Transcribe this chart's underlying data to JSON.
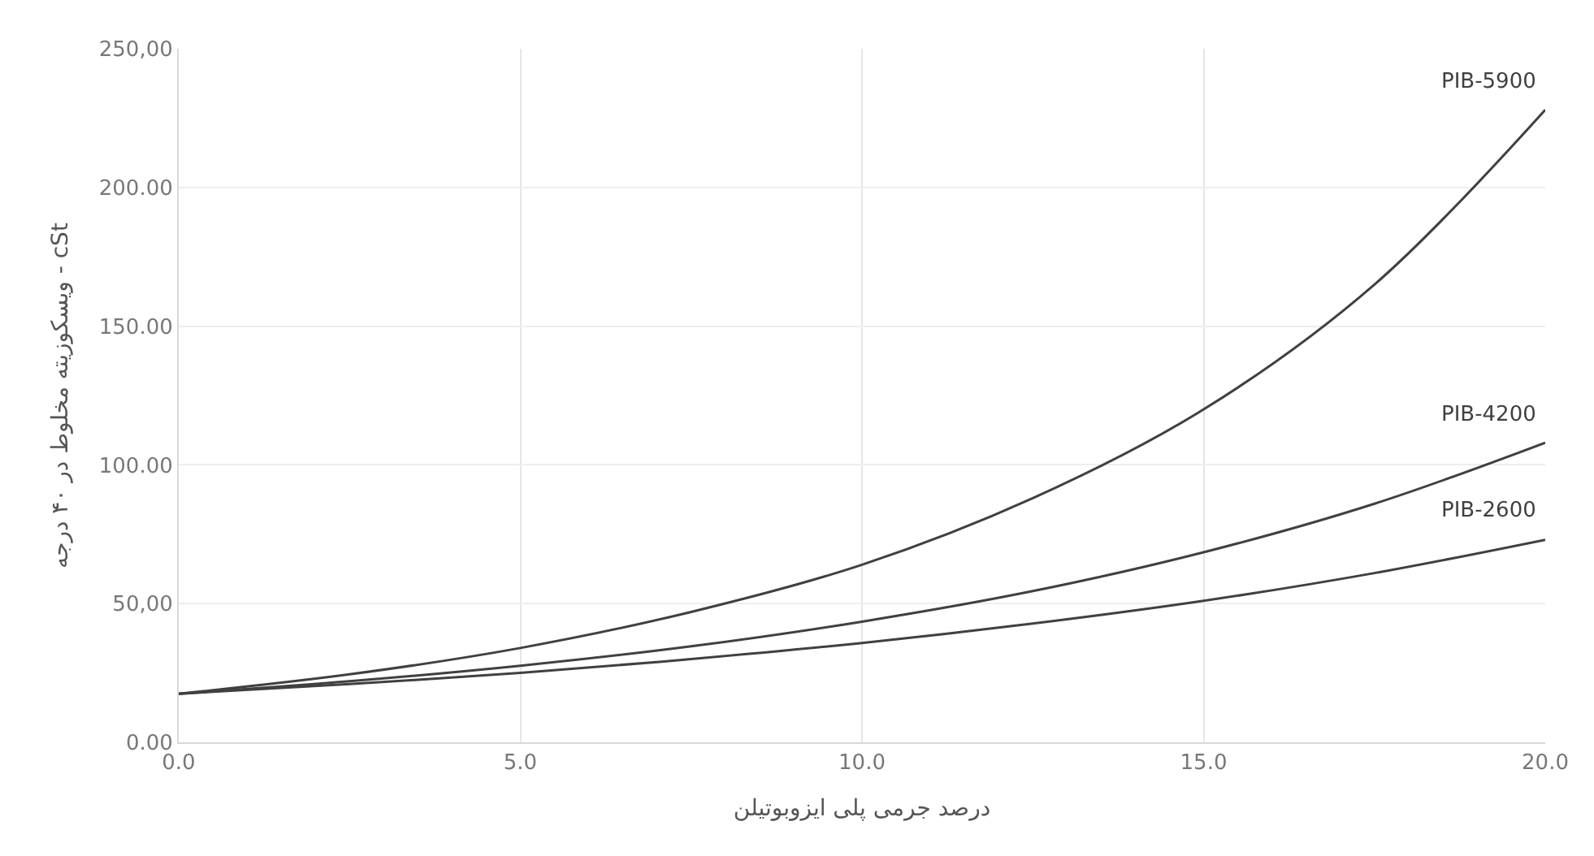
{
  "chart_data": {
    "type": "line",
    "xlabel": "درصد جرمی پلی ایزوبوتیلن",
    "ylabel": "ویسکوزیته مخلوط در ۴۰ درجه - cSt",
    "x": [
      0,
      2.5,
      5,
      7.5,
      10,
      12.5,
      15,
      17.5,
      20
    ],
    "series": [
      {
        "name": "PIB-5900",
        "color": "#404040",
        "values": [
          17.5,
          24.5,
          34,
          47,
          64,
          88,
          120,
          165,
          228
        ]
      },
      {
        "name": "PIB-4200",
        "color": "#404040",
        "values": [
          17.5,
          22,
          27.6,
          34.6,
          43.5,
          54.5,
          68.5,
          86,
          108
        ]
      },
      {
        "name": "PIB-2600",
        "color": "#404040",
        "values": [
          17.5,
          21,
          25,
          30,
          35.8,
          42.8,
          51,
          61,
          73
        ]
      }
    ],
    "xlim": [
      0,
      20
    ],
    "xticks": [
      {
        "value": 0,
        "label": "0.0"
      },
      {
        "value": 5,
        "label": "5.0"
      },
      {
        "value": 10,
        "label": "10.0"
      },
      {
        "value": 15,
        "label": "15.0"
      },
      {
        "value": 20,
        "label": "20.0"
      }
    ],
    "ylim": [
      0,
      250
    ],
    "yticks": [
      {
        "value": 0,
        "label": "0.00"
      },
      {
        "value": 50,
        "label": "50,00"
      },
      {
        "value": 100,
        "label": "100.00"
      },
      {
        "value": 150,
        "label": "150.00"
      },
      {
        "value": 200,
        "label": "200.00"
      },
      {
        "value": 250,
        "label": "250,00"
      }
    ],
    "grid": true,
    "legend": false,
    "marker": "none",
    "line_style": "solid"
  }
}
